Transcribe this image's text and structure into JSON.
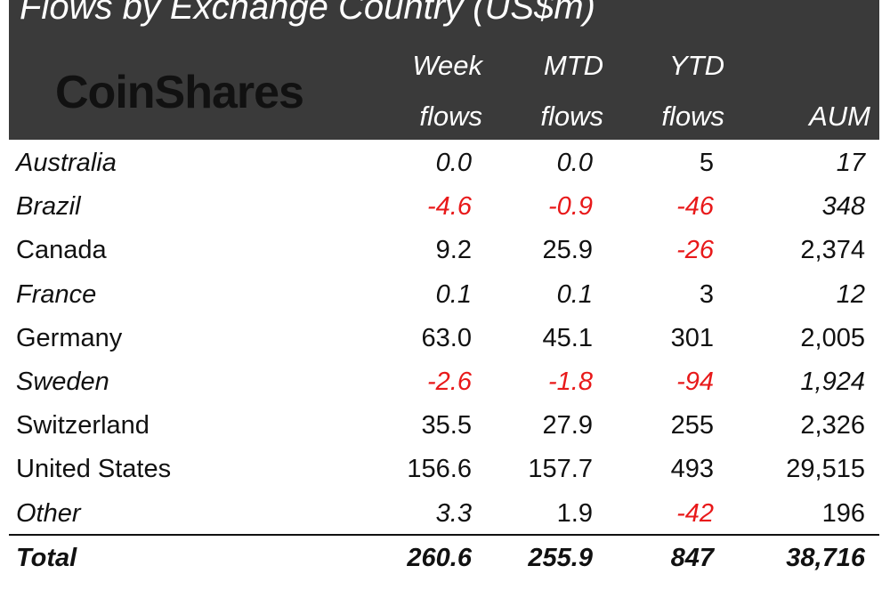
{
  "title": "Flows by Exchange Country (US$m)",
  "logo_text": "CoinShares",
  "headers": {
    "week": [
      "Week",
      "flows"
    ],
    "mtd": [
      "MTD",
      "flows"
    ],
    "ytd": [
      "YTD",
      "flows"
    ],
    "aum": "AUM"
  },
  "colors": {
    "header_bg": "#3a3a3a",
    "negative": "#e8191a",
    "text": "#111111"
  },
  "chart_data": {
    "type": "table",
    "title": "Flows by Exchange Country (US$m)",
    "columns": [
      "Week flows",
      "MTD flows",
      "YTD flows",
      "AUM"
    ],
    "rows": [
      {
        "country": "Australia",
        "week": "0.0",
        "mtd": "0.0",
        "ytd": "5",
        "aum": "17"
      },
      {
        "country": "Brazil",
        "week": "-4.6",
        "mtd": "-0.9",
        "ytd": "-46",
        "aum": "348"
      },
      {
        "country": "Canada",
        "week": "9.2",
        "mtd": "25.9",
        "ytd": "-26",
        "aum": "2,374"
      },
      {
        "country": "France",
        "week": "0.1",
        "mtd": "0.1",
        "ytd": "3",
        "aum": "12"
      },
      {
        "country": "Germany",
        "week": "63.0",
        "mtd": "45.1",
        "ytd": "301",
        "aum": "2,005"
      },
      {
        "country": "Sweden",
        "week": "-2.6",
        "mtd": "-1.8",
        "ytd": "-94",
        "aum": "1,924"
      },
      {
        "country": "Switzerland",
        "week": "35.5",
        "mtd": "27.9",
        "ytd": "255",
        "aum": "2,326"
      },
      {
        "country": "United States",
        "week": "156.6",
        "mtd": "157.7",
        "ytd": "493",
        "aum": "29,515"
      },
      {
        "country": "Other",
        "week": "3.3",
        "mtd": "1.9",
        "ytd": "-42",
        "aum": "196"
      }
    ],
    "total": {
      "country": "Total",
      "week": "260.6",
      "mtd": "255.9",
      "ytd": "847",
      "aum": "38,716"
    }
  }
}
